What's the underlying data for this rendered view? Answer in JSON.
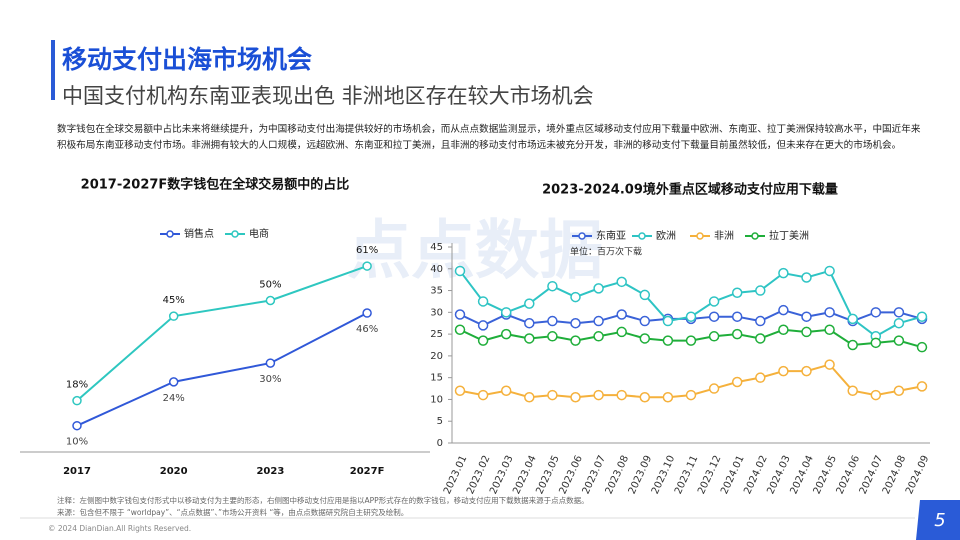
{
  "header": {
    "title": "移动支付出海市场机会",
    "subtitle": "中国支付机构东南亚表现出色 非洲地区存在较大市场机会",
    "body": "数字钱包在全球交易额中占比未来将继续提升，为中国移动支付出海提供较好的市场机会，而从点点数据监测显示，境外重点区域移动支付应用下载量中欧洲、东南亚、拉丁美洲保持较高水平，中国近年来积极布局东南亚移动支付市场。非洲拥有较大的人口规模，远超欧洲、东南亚和拉丁美洲，且非洲的移动支付市场远未被充分开发，非洲的移动支付下载量目前虽然较低，但未来存在更大的市场机会。"
  },
  "watermark": "点点数据",
  "chart_data": [
    {
      "type": "line",
      "title": "2017-2027F数字钱包在全球交易额中的占比",
      "categories": [
        "2017",
        "2020",
        "2023",
        "2027F"
      ],
      "series": [
        {
          "name": "销售点",
          "color": "#3058d8",
          "values": [
            10,
            24,
            30,
            46
          ],
          "value_labels": [
            "10%",
            "24%",
            "30%",
            "46%"
          ]
        },
        {
          "name": "电商",
          "color": "#2ec7c0",
          "values": [
            18,
            45,
            50,
            61
          ],
          "value_labels": [
            "18%",
            "45%",
            "50%",
            "61%"
          ]
        }
      ],
      "legend": "top"
    },
    {
      "type": "line",
      "title": "2023-2024.09境外重点区域移动支付应用下载量",
      "annotation": "单位：百万次下载",
      "categories": [
        "2023.01",
        "2023.02",
        "2023.03",
        "2023.04",
        "2023.05",
        "2023.06",
        "2023.07",
        "2023.08",
        "2023.09",
        "2023.10",
        "2023.11",
        "2023.12",
        "2024.01",
        "2024.02",
        "2024.03",
        "2024.04",
        "2024.05",
        "2024.06",
        "2024.07",
        "2024.08",
        "2024.09"
      ],
      "series": [
        {
          "name": "东南亚",
          "color": "#3a62d8",
          "values": [
            29.5,
            27,
            29.5,
            27.5,
            28,
            27.5,
            28,
            29.5,
            28,
            28.5,
            28.5,
            29,
            29,
            28,
            30.5,
            29,
            30,
            28,
            30,
            30,
            28.5
          ]
        },
        {
          "name": "欧洲",
          "color": "#2ec4c4",
          "values": [
            39.5,
            32.5,
            30,
            32,
            36,
            33.5,
            35.5,
            37,
            34,
            28,
            29,
            32.5,
            34.5,
            35,
            39,
            38,
            39.5,
            28.5,
            24.5,
            27.5,
            29
          ]
        },
        {
          "name": "非洲",
          "color": "#f5b13c",
          "values": [
            12,
            11,
            12,
            10.5,
            11,
            10.5,
            11,
            11,
            10.5,
            10.5,
            11,
            12.5,
            14,
            15,
            16.5,
            16.5,
            18,
            12,
            11,
            12,
            13
          ]
        },
        {
          "name": "拉丁美洲",
          "color": "#1fae3a",
          "values": [
            26,
            23.5,
            25,
            24,
            24.5,
            23.5,
            24.5,
            25.5,
            24,
            23.5,
            23.5,
            24.5,
            25,
            24,
            26,
            25.5,
            26,
            22.5,
            23,
            23.5,
            22
          ]
        }
      ],
      "ylim": [
        0,
        45
      ],
      "yticks": [
        0,
        5,
        10,
        15,
        20,
        25,
        30,
        35,
        40,
        45
      ],
      "grid": false,
      "legend": "top"
    }
  ],
  "footer": {
    "note": "注释：左侧图中数字钱包支付形式中以移动支付为主要的形态，右侧图中移动支付应用是指以APP形式存在的数字钱包，移动支付应用下载数据来源于点点数据。",
    "source": "来源：包含但不限于 “worldpay”、“点点数据”、”市场公开资料 “等，由点点数据研究院自主研究及绘制。",
    "copyright": "© 2024 DianDian.All Rights Reserved.",
    "page": "5"
  }
}
